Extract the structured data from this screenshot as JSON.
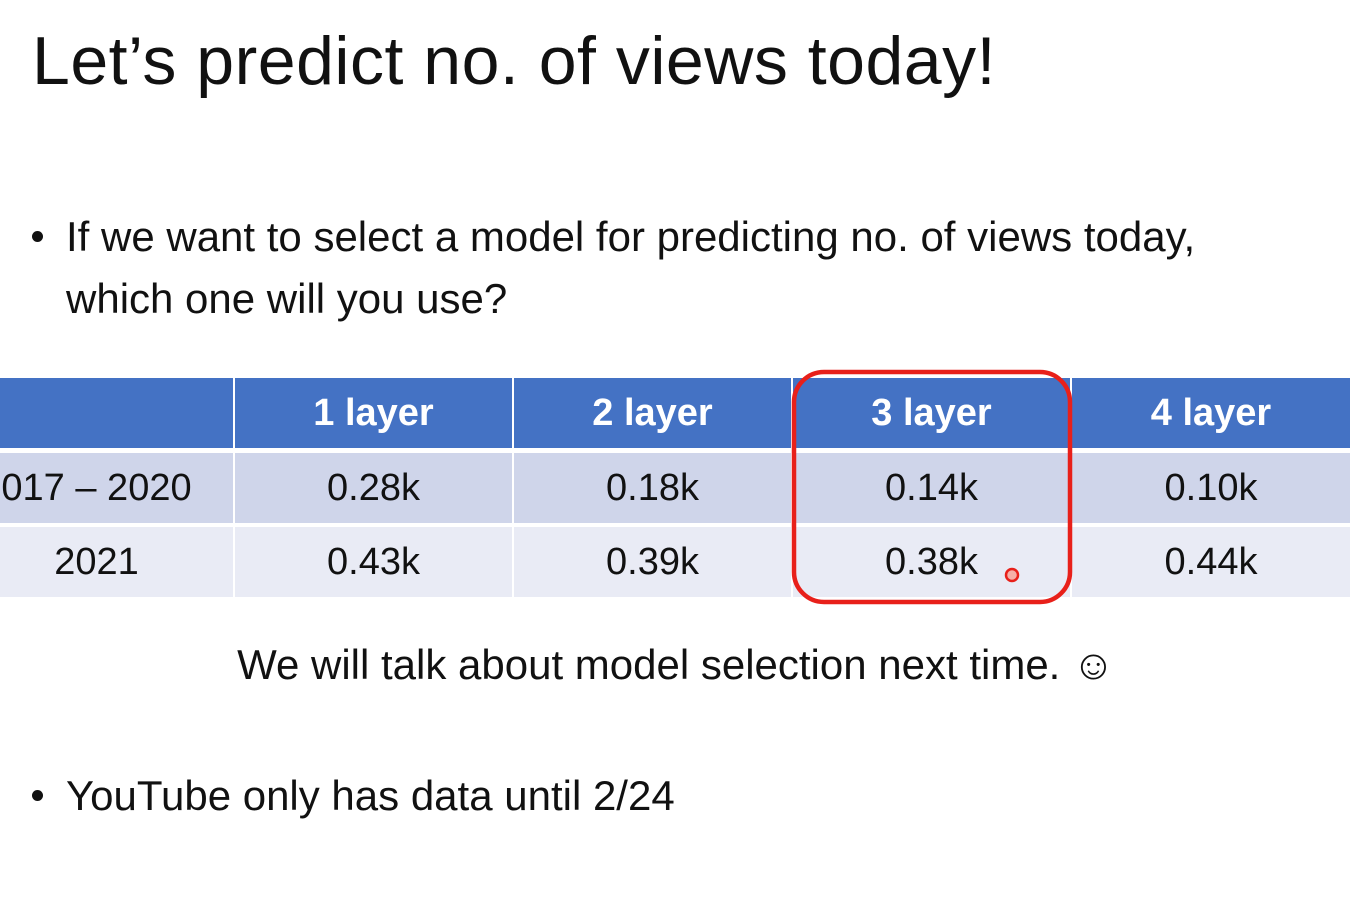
{
  "title": "Let’s predict no. of views today!",
  "bullets": [
    "If we want to select a model for predicting no. of views today, which one will you use?",
    "YouTube only has data until 2/24"
  ],
  "table": {
    "header": [
      "1 layer",
      "2 layer",
      "3 layer",
      "4 layer"
    ],
    "rows": [
      [
        "017 – 2020",
        "0.28k",
        "0.18k",
        "0.14k",
        "0.10k"
      ],
      [
        "2021",
        "0.43k",
        "0.39k",
        "0.38k",
        "0.44k"
      ]
    ]
  },
  "note": "We will talk about model selection next time. ☺"
}
